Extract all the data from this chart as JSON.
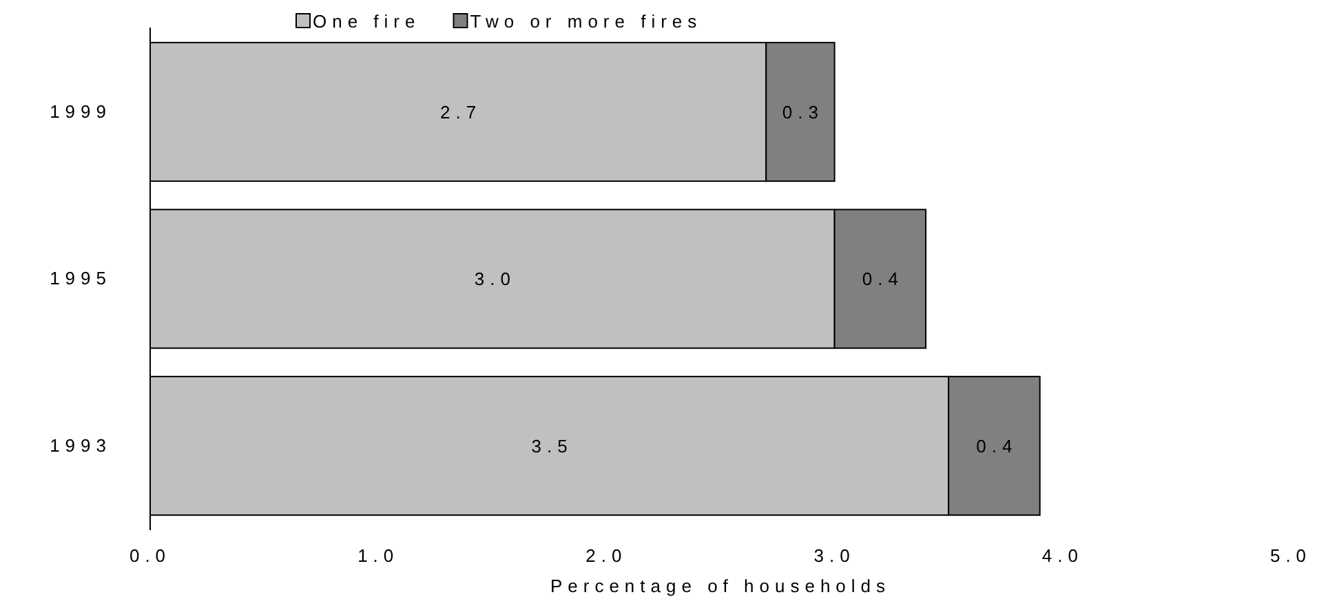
{
  "chart_data": {
    "type": "bar",
    "orientation": "horizontal",
    "stacked": true,
    "categories": [
      "1999",
      "1995",
      "1993"
    ],
    "series": [
      {
        "name": "One fire",
        "color": "#c0c0c0",
        "values": [
          2.7,
          3.0,
          3.5
        ],
        "value_labels": [
          "2.7",
          "3.0",
          "3.5"
        ]
      },
      {
        "name": "Two or more fires",
        "color": "#808080",
        "values": [
          0.3,
          0.4,
          0.4
        ],
        "value_labels": [
          "0.3",
          "0.4",
          "0.4"
        ]
      }
    ],
    "xlabel": "Percentage of households",
    "xlim": [
      0,
      5
    ],
    "xticks": [
      {
        "value": 0,
        "label": "0.0"
      },
      {
        "value": 1,
        "label": "1.0"
      },
      {
        "value": 2,
        "label": "2.0"
      },
      {
        "value": 3,
        "label": "3.0"
      },
      {
        "value": 4,
        "label": "4.0"
      },
      {
        "value": 5,
        "label": "5.0"
      }
    ],
    "legend": "top",
    "grid": false
  }
}
